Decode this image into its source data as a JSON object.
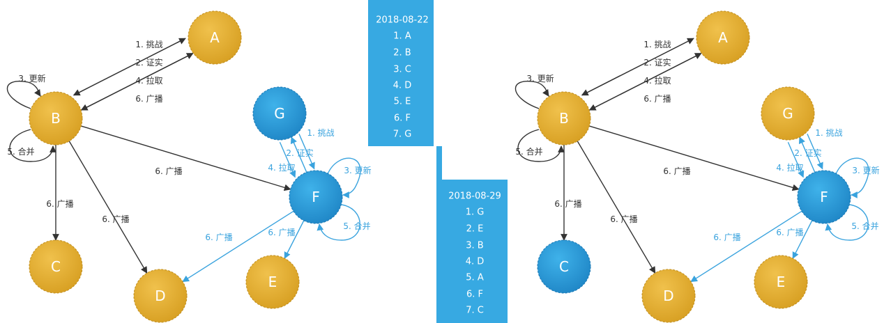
{
  "colors": {
    "gold": "#e0ad2f",
    "blue": "#2d9bd6",
    "dark_edge": "#333333",
    "blue_edge": "#3aa3de",
    "timeline": "#37a9e2"
  },
  "nodes": {
    "A": "A",
    "B": "B",
    "C": "C",
    "D": "D",
    "E": "E",
    "F": "F",
    "G": "G"
  },
  "edge_labels": {
    "challenge": "1. 挑战",
    "verify": "2. 证实",
    "update": "3. 更新",
    "pull": "4. 拉取",
    "merge": "5. 合并",
    "broadcast": "6. 广播"
  },
  "timeline": {
    "first": {
      "date": "2018-08-22",
      "items": [
        "1. A",
        "2. B",
        "3. C",
        "4. D",
        "5. E",
        "6. F",
        "7. G"
      ]
    },
    "second": {
      "date": "2018-08-29",
      "items": [
        "1. G",
        "2. E",
        "3. B",
        "4. D",
        "5. A",
        "6. F",
        "7. C"
      ]
    }
  },
  "diagrams": {
    "left": {
      "node_colors": {
        "A": "gold",
        "B": "gold",
        "C": "gold",
        "D": "gold",
        "E": "gold",
        "F": "blue",
        "G": "blue"
      }
    },
    "right": {
      "node_colors": {
        "A": "gold",
        "B": "gold",
        "C": "blue",
        "D": "gold",
        "E": "gold",
        "F": "blue",
        "G": "gold"
      }
    }
  }
}
